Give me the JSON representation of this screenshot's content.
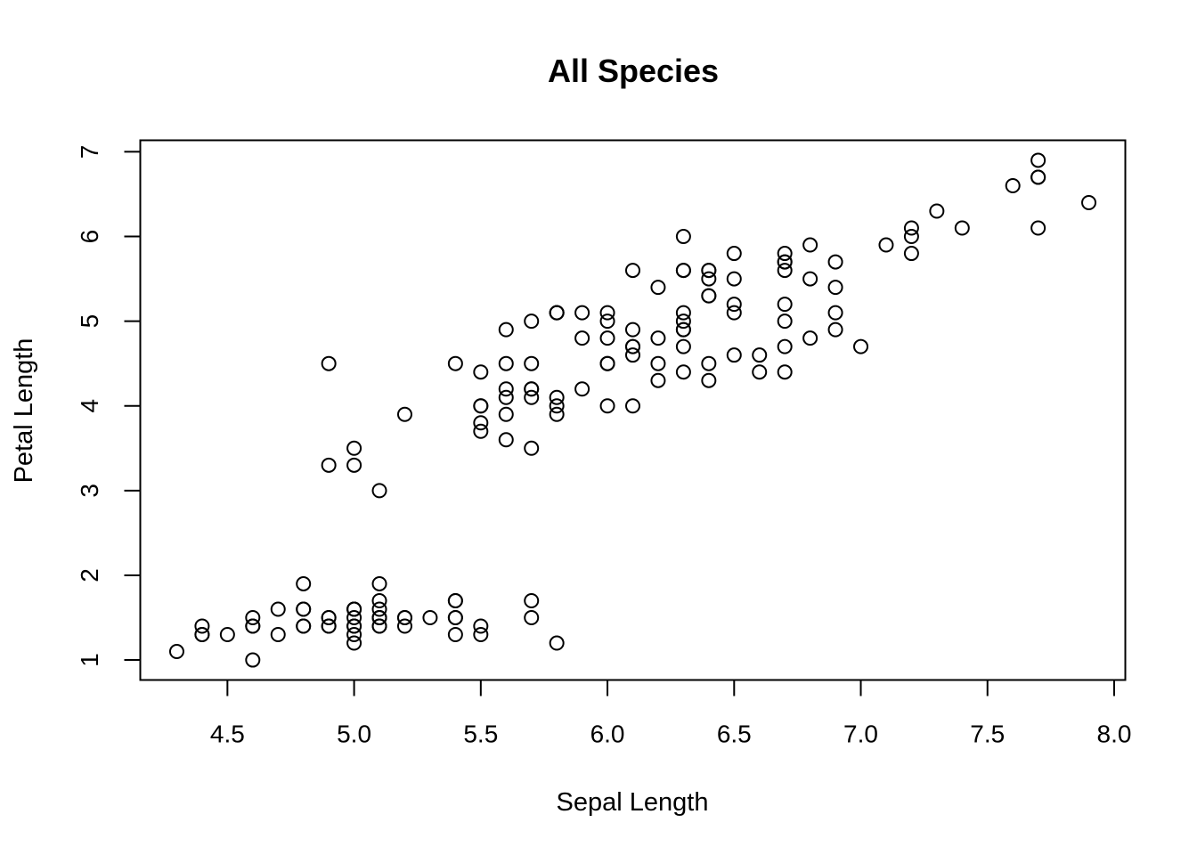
{
  "chart_data": {
    "type": "scatter",
    "title": "All Species",
    "xlabel": "Sepal Length",
    "ylabel": "Petal Length",
    "xlim": [
      4.3,
      7.9
    ],
    "ylim": [
      1.0,
      6.9
    ],
    "x_ticks": [
      4.5,
      5.0,
      5.5,
      6.0,
      6.5,
      7.0,
      7.5,
      8.0
    ],
    "x_tick_labels": [
      "4.5",
      "5.0",
      "5.5",
      "6.0",
      "6.5",
      "7.0",
      "7.5",
      "8.0"
    ],
    "y_ticks": [
      1,
      2,
      3,
      4,
      5,
      6,
      7
    ],
    "y_tick_labels": [
      "1",
      "2",
      "3",
      "4",
      "5",
      "6",
      "7"
    ],
    "grid": false,
    "marker": "open-circle",
    "x": [
      5.1,
      4.9,
      4.7,
      4.6,
      5.0,
      5.4,
      4.6,
      5.0,
      4.4,
      4.9,
      5.4,
      4.8,
      4.8,
      4.3,
      5.8,
      5.7,
      5.4,
      5.1,
      5.7,
      5.1,
      5.4,
      5.1,
      4.6,
      5.1,
      4.8,
      5.0,
      5.0,
      5.2,
      5.2,
      4.7,
      4.8,
      5.4,
      5.2,
      5.5,
      4.9,
      5.0,
      5.5,
      4.9,
      4.4,
      5.1,
      5.0,
      4.5,
      4.4,
      5.0,
      5.1,
      4.8,
      5.1,
      4.6,
      5.3,
      5.0,
      7.0,
      6.4,
      6.9,
      5.5,
      6.5,
      5.7,
      6.3,
      4.9,
      6.6,
      5.2,
      5.0,
      5.9,
      6.0,
      6.1,
      5.6,
      6.7,
      5.6,
      5.8,
      6.2,
      5.6,
      5.9,
      6.1,
      6.3,
      6.1,
      6.4,
      6.6,
      6.8,
      6.7,
      6.0,
      5.7,
      5.5,
      5.5,
      5.8,
      6.0,
      5.4,
      6.0,
      6.7,
      6.3,
      5.6,
      5.5,
      5.5,
      6.1,
      5.8,
      5.0,
      5.6,
      5.7,
      5.7,
      6.2,
      5.1,
      5.7,
      6.3,
      5.8,
      7.1,
      6.3,
      6.5,
      7.6,
      4.9,
      7.3,
      6.7,
      7.2,
      6.5,
      6.4,
      6.8,
      5.7,
      5.8,
      6.4,
      6.5,
      7.7,
      7.7,
      6.0,
      6.9,
      5.6,
      7.7,
      6.3,
      6.7,
      7.2,
      6.2,
      6.1,
      6.4,
      7.2,
      7.4,
      7.9,
      6.4,
      6.3,
      6.1,
      7.7,
      6.3,
      6.4,
      6.0,
      6.9,
      6.7,
      6.9,
      5.8,
      6.8,
      6.7,
      6.7,
      6.3,
      6.5,
      6.2,
      5.9
    ],
    "y": [
      1.4,
      1.4,
      1.3,
      1.5,
      1.4,
      1.7,
      1.4,
      1.5,
      1.4,
      1.5,
      1.5,
      1.6,
      1.4,
      1.1,
      1.2,
      1.5,
      1.3,
      1.4,
      1.7,
      1.5,
      1.7,
      1.5,
      1.0,
      1.7,
      1.9,
      1.6,
      1.6,
      1.5,
      1.4,
      1.6,
      1.6,
      1.5,
      1.5,
      1.4,
      1.5,
      1.2,
      1.3,
      1.4,
      1.3,
      1.5,
      1.3,
      1.3,
      1.3,
      1.6,
      1.9,
      1.4,
      1.6,
      1.4,
      1.5,
      1.4,
      4.7,
      4.5,
      4.9,
      4.0,
      4.6,
      4.5,
      4.7,
      3.3,
      4.6,
      3.9,
      3.5,
      4.2,
      4.0,
      4.7,
      3.6,
      4.4,
      4.5,
      4.1,
      4.5,
      3.9,
      4.8,
      4.0,
      4.9,
      4.7,
      4.3,
      4.4,
      4.8,
      5.0,
      4.5,
      3.5,
      3.8,
      3.7,
      3.9,
      5.1,
      4.5,
      4.5,
      4.7,
      4.4,
      4.1,
      4.0,
      4.4,
      4.6,
      4.0,
      3.3,
      4.2,
      4.2,
      4.2,
      4.3,
      3.0,
      4.1,
      6.0,
      5.1,
      5.9,
      5.6,
      5.8,
      6.6,
      4.5,
      6.3,
      5.8,
      6.1,
      5.1,
      5.3,
      5.5,
      5.0,
      5.1,
      5.3,
      5.5,
      6.7,
      6.9,
      5.0,
      5.7,
      4.9,
      6.7,
      4.9,
      5.7,
      6.0,
      4.8,
      4.9,
      5.6,
      5.8,
      6.1,
      6.4,
      5.6,
      5.1,
      5.6,
      6.1,
      5.6,
      5.5,
      4.8,
      5.4,
      5.6,
      5.1,
      5.1,
      5.9,
      5.7,
      5.2,
      5.0,
      5.2,
      5.4,
      5.1
    ]
  }
}
